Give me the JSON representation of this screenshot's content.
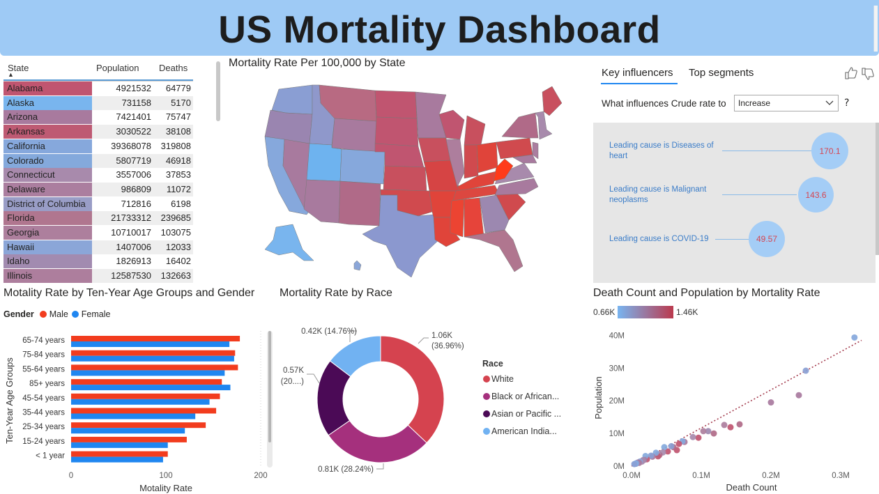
{
  "title": "US Mortality Dashboard",
  "table": {
    "headers": {
      "state": "State",
      "population": "Population",
      "deaths": "Deaths"
    },
    "rows": [
      {
        "state": "Alabama",
        "population": "4921532",
        "deaths": "64779",
        "color": "#c05570"
      },
      {
        "state": "Alaska",
        "population": "731158",
        "deaths": "5170",
        "color": "#79b5ee"
      },
      {
        "state": "Arizona",
        "population": "7421401",
        "deaths": "75747",
        "color": "#a87a9e"
      },
      {
        "state": "Arkansas",
        "population": "3030522",
        "deaths": "38108",
        "color": "#be5a73"
      },
      {
        "state": "California",
        "population": "39368078",
        "deaths": "319808",
        "color": "#86a8dc"
      },
      {
        "state": "Colorado",
        "population": "5807719",
        "deaths": "46918",
        "color": "#84a9dc"
      },
      {
        "state": "Connecticut",
        "population": "3557006",
        "deaths": "37853",
        "color": "#a88aac"
      },
      {
        "state": "Delaware",
        "population": "986809",
        "deaths": "11072",
        "color": "#ab7e9f"
      },
      {
        "state": "District of Columbia",
        "population": "712816",
        "deaths": "6198",
        "color": "#999dc6"
      },
      {
        "state": "Florida",
        "population": "21733312",
        "deaths": "239685",
        "color": "#b0768f"
      },
      {
        "state": "Georgia",
        "population": "10710017",
        "deaths": "103075",
        "color": "#ad7f9d"
      },
      {
        "state": "Hawaii",
        "population": "1407006",
        "deaths": "12033",
        "color": "#8ba6d8"
      },
      {
        "state": "Idaho",
        "population": "1826913",
        "deaths": "16402",
        "color": "#a28bb0"
      },
      {
        "state": "Illinois",
        "population": "12587530",
        "deaths": "132663",
        "color": "#ad7e9d"
      }
    ]
  },
  "map": {
    "title": "Mortality Rate Per 100,000 by State"
  },
  "influencers": {
    "tab_key": "Key influencers",
    "tab_top": "Top segments",
    "question": "What influences Crude rate to",
    "dropdown_value": "Increase",
    "help": "?",
    "items": [
      {
        "label": "Leading cause is Diseases of heart",
        "value": "170.1"
      },
      {
        "label": "Leading cause is Malignant neoplasms",
        "value": "143.6"
      },
      {
        "label": "Leading cause is COVID-19",
        "value": "49.57"
      }
    ]
  },
  "chart_data": [
    {
      "type": "bar",
      "title": "Motality Rate by Ten-Year Age Groups and Gender",
      "legend_title": "Gender",
      "categories": [
        "65-74 years",
        "75-84 years",
        "55-64 years",
        "85+ years",
        "45-54 years",
        "35-44 years",
        "25-34 years",
        "15-24 years",
        "< 1 year"
      ],
      "series": [
        {
          "name": "Male",
          "color": "#f23c1e",
          "values": [
            178,
            173,
            176,
            159,
            157,
            153,
            142,
            122,
            102
          ]
        },
        {
          "name": "Female",
          "color": "#1f86f0",
          "values": [
            167,
            172,
            162,
            168,
            146,
            131,
            120,
            102,
            97
          ]
        }
      ],
      "xlabel": "Motality Rate",
      "ylabel": "Ten-Year Age Groups",
      "xlim": [
        0,
        200
      ],
      "xticks": [
        "0",
        "100",
        "200"
      ]
    },
    {
      "type": "pie",
      "title": "Mortality Rate by Race",
      "legend_title": "Race",
      "slices": [
        {
          "name": "White",
          "legend": "White",
          "value": 1.06,
          "label": "1.06K",
          "pct": "(36.96%)",
          "color": "#d5434f"
        },
        {
          "name": "Black or African American",
          "legend": "Black or African...",
          "value": 0.81,
          "label": "0.81K (28.24%)",
          "pct": "",
          "color": "#a5307d"
        },
        {
          "name": "Asian or Pacific Islander",
          "legend": "Asian or Pacific ...",
          "value": 0.57,
          "label": "0.57K",
          "pct": "(20....)",
          "color": "#4b0a56"
        },
        {
          "name": "American Indian",
          "legend": "American India...",
          "value": 0.42,
          "label": "0.42K (14.76%)",
          "pct": "",
          "color": "#71b2f2"
        }
      ]
    },
    {
      "type": "scatter",
      "title": "Death Count and Population by Mortality Rate",
      "color_legend": {
        "min": "0.66K",
        "max": "1.46K",
        "min_color": "#78b4f0",
        "max_color": "#bb3a4e"
      },
      "xlabel": "Death Count",
      "ylabel": "Population",
      "xlim": [
        0,
        330000
      ],
      "ylim": [
        0,
        42000000
      ],
      "xticks": [
        "0.0M",
        "0.1M",
        "0.2M",
        "0.3M"
      ],
      "yticks": [
        "0M",
        "10M",
        "20M",
        "30M",
        "40M"
      ],
      "points": [
        [
          319808,
          39368078,
          "#86a8dc"
        ],
        [
          250000,
          29200000,
          "#8aa0d4"
        ],
        [
          240000,
          21700000,
          "#a87a9e"
        ],
        [
          200000,
          19500000,
          "#a87a9e"
        ],
        [
          155000,
          12800000,
          "#b06a88"
        ],
        [
          142000,
          11900000,
          "#c05570"
        ],
        [
          133000,
          12600000,
          "#ad7e9d"
        ],
        [
          118000,
          10000000,
          "#b06a88"
        ],
        [
          110000,
          10700000,
          "#9e8ab0"
        ],
        [
          103000,
          10700000,
          "#ad7f9d"
        ],
        [
          96000,
          8700000,
          "#c05570"
        ],
        [
          88000,
          8900000,
          "#a88aac"
        ],
        [
          76000,
          7400000,
          "#a87a9e"
        ],
        [
          73000,
          7600000,
          "#86a8dc"
        ],
        [
          68000,
          6800000,
          "#c05570"
        ],
        [
          65000,
          4900000,
          "#c05570"
        ],
        [
          60000,
          5800000,
          "#b06a88"
        ],
        [
          57000,
          6100000,
          "#8aa0d4"
        ],
        [
          52000,
          4500000,
          "#c05570"
        ],
        [
          47000,
          5800000,
          "#84a9dc"
        ],
        [
          45000,
          4200000,
          "#a88aac"
        ],
        [
          40000,
          3400000,
          "#b06a88"
        ],
        [
          38000,
          3600000,
          "#a88aac"
        ],
        [
          38000,
          3000000,
          "#be5a73"
        ],
        [
          35000,
          4100000,
          "#86a8dc"
        ],
        [
          30000,
          2900000,
          "#a87a9e"
        ],
        [
          28000,
          3200000,
          "#8aa0d4"
        ],
        [
          22000,
          2100000,
          "#c05570"
        ],
        [
          20000,
          3100000,
          "#84a9dc"
        ],
        [
          18000,
          1900000,
          "#a87a9e"
        ],
        [
          16400,
          1830000,
          "#a28bb0"
        ],
        [
          15000,
          1400000,
          "#a88aac"
        ],
        [
          12000,
          1400000,
          "#8ba6d8"
        ],
        [
          11000,
          990000,
          "#ab7e9f"
        ],
        [
          9000,
          1100000,
          "#a87a9e"
        ],
        [
          7000,
          900000,
          "#8aa0d4"
        ],
        [
          6200,
          710000,
          "#999dc6"
        ],
        [
          5200,
          730000,
          "#79b5ee"
        ],
        [
          4000,
          620000,
          "#8aa0d4"
        ]
      ],
      "trend": [
        [
          0,
          0
        ],
        [
          330000,
          38500000
        ]
      ]
    }
  ]
}
